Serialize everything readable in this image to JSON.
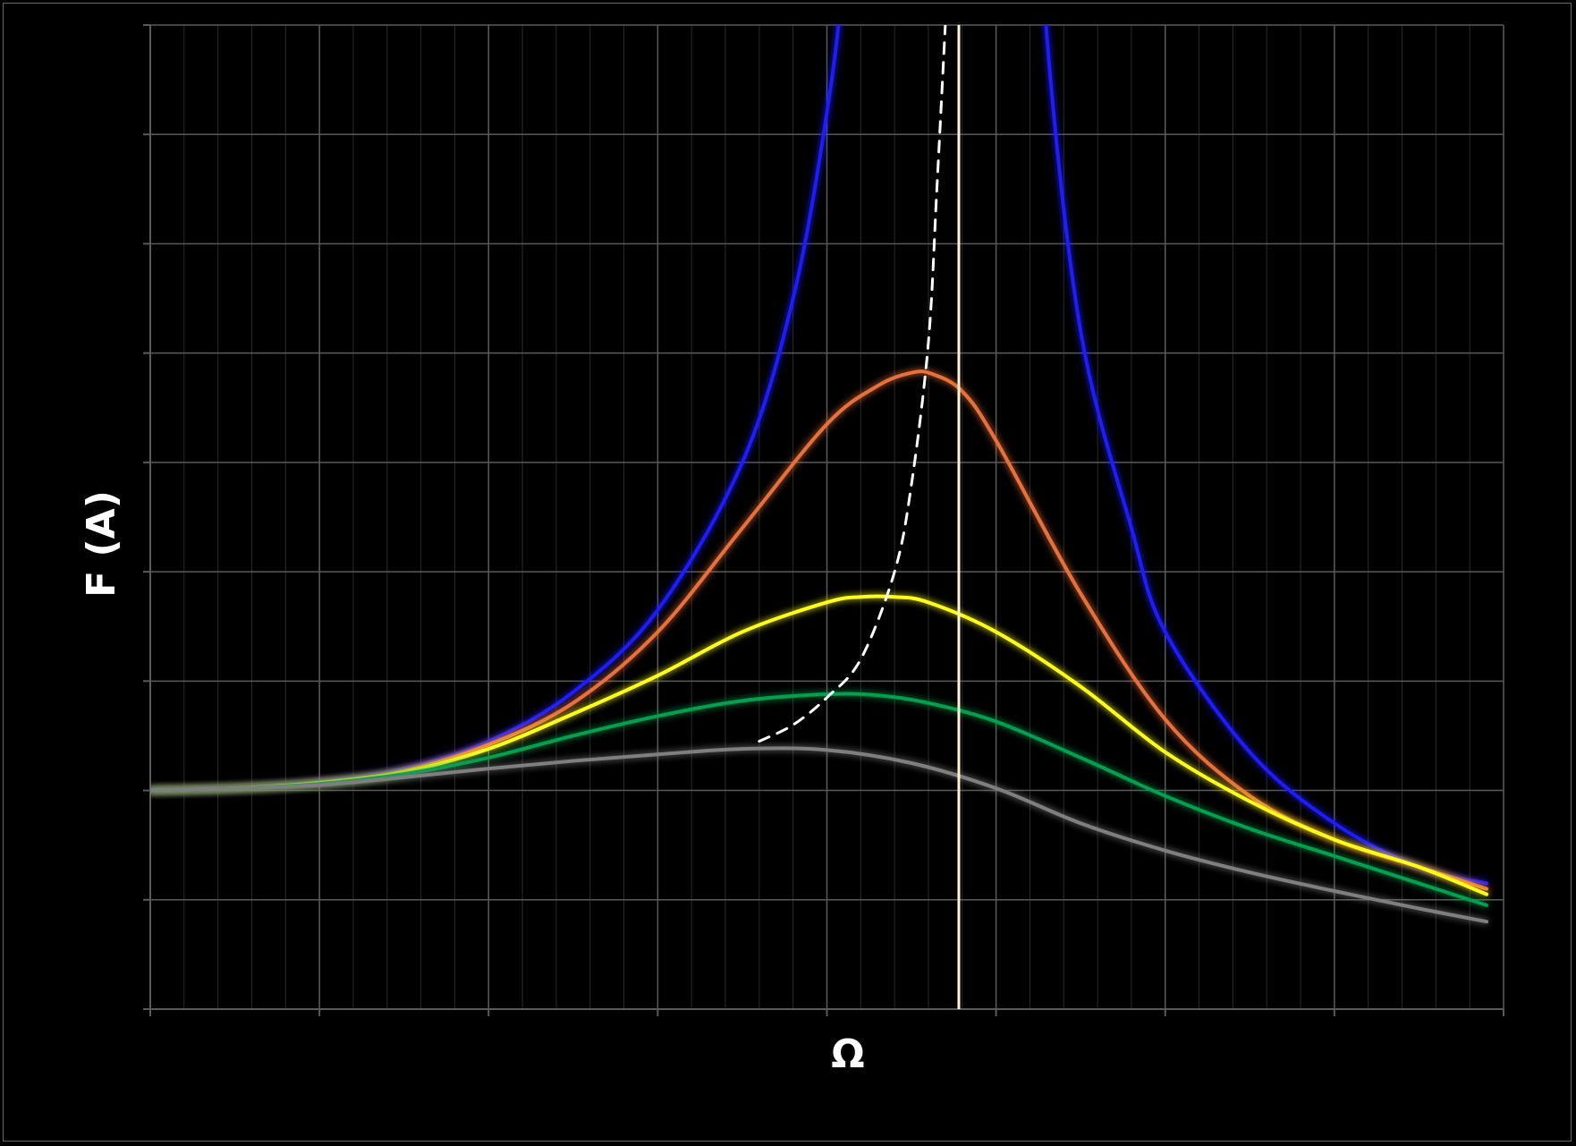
{
  "chart_data": {
    "type": "line",
    "title": "",
    "xlabel": "Ω",
    "ylabel": "F (A)",
    "xlim": [
      0,
      8
    ],
    "ylim": [
      -2,
      7
    ],
    "grid": true,
    "legend": "none",
    "colors": {
      "background": "#000000",
      "grid_major": "#5a5a5a",
      "grid_minor": "#2a2a2a",
      "frame": "#6a6a6a"
    },
    "series": [
      {
        "color": "#1a1aff",
        "style": "solid",
        "segments": [
          {
            "x": [
              0,
              0.5,
              1.0,
              1.5,
              2.0,
              2.5,
              3.0,
              3.5,
              3.8,
              4.0,
              4.1,
              4.2
            ],
            "y": [
              0,
              0.02,
              0.08,
              0.2,
              0.45,
              0.9,
              1.65,
              3.0,
              4.5,
              6.2,
              7.5,
              9.5
            ]
          },
          {
            "x": [
              5.25,
              5.3,
              5.5,
              5.8,
              6.0,
              6.5,
              7.0,
              7.5,
              7.9
            ],
            "y": [
              9.0,
              6.9,
              4.2,
              2.4,
              1.45,
              0.35,
              -0.3,
              -0.7,
              -0.85
            ]
          }
        ]
      },
      {
        "color": "#e8703a",
        "style": "solid",
        "segments": [
          {
            "x": [
              0,
              0.5,
              1.0,
              1.5,
              2.0,
              2.5,
              3.0,
              3.5,
              4.0,
              4.3,
              4.5,
              4.62,
              4.8,
              5.0,
              5.5,
              6.0,
              6.5,
              7.0,
              7.5,
              7.9
            ],
            "y": [
              0,
              0.02,
              0.07,
              0.18,
              0.42,
              0.8,
              1.45,
              2.4,
              3.35,
              3.7,
              3.82,
              3.81,
              3.65,
              3.2,
              1.8,
              0.65,
              -0.05,
              -0.45,
              -0.7,
              -0.9
            ]
          }
        ]
      },
      {
        "color": "#ffff1a",
        "style": "solid",
        "segments": [
          {
            "x": [
              0,
              0.5,
              1.0,
              1.5,
              2.0,
              2.5,
              3.0,
              3.5,
              4.0,
              4.2,
              4.4,
              4.6,
              5.0,
              5.5,
              6.0,
              6.5,
              7.0,
              7.5,
              7.9
            ],
            "y": [
              0,
              0.02,
              0.07,
              0.17,
              0.38,
              0.7,
              1.05,
              1.45,
              1.72,
              1.77,
              1.77,
              1.72,
              1.45,
              0.95,
              0.35,
              -0.1,
              -0.45,
              -0.7,
              -0.95
            ]
          }
        ]
      },
      {
        "color": "#00a050",
        "style": "solid",
        "segments": [
          {
            "x": [
              0,
              0.5,
              1.0,
              1.5,
              2.0,
              2.5,
              3.0,
              3.5,
              4.0,
              4.3,
              4.6,
              5.0,
              5.5,
              6.0,
              6.5,
              7.0,
              7.5,
              7.9
            ],
            "y": [
              0,
              0.02,
              0.06,
              0.15,
              0.3,
              0.5,
              0.68,
              0.82,
              0.88,
              0.87,
              0.8,
              0.63,
              0.3,
              -0.05,
              -0.35,
              -0.6,
              -0.85,
              -1.05
            ]
          }
        ]
      },
      {
        "color": "#7f7f7f",
        "style": "solid",
        "segments": [
          {
            "x": [
              0,
              0.5,
              1.0,
              1.5,
              2.0,
              2.5,
              3.0,
              3.5,
              4.0,
              4.5,
              5.0,
              5.5,
              6.0,
              6.5,
              7.0,
              7.5,
              7.9
            ],
            "y": [
              0,
              0.02,
              0.05,
              0.12,
              0.2,
              0.27,
              0.33,
              0.38,
              0.37,
              0.25,
              0.02,
              -0.3,
              -0.55,
              -0.75,
              -0.92,
              -1.08,
              -1.2
            ]
          }
        ]
      },
      {
        "color": "#ffffff",
        "style": "dashed",
        "segments": [
          {
            "x": [
              3.6,
              3.8,
              4.0,
              4.2,
              4.4,
              4.5,
              4.6,
              4.65,
              4.7
            ],
            "y": [
              0.45,
              0.6,
              0.85,
              1.2,
              2.0,
              2.8,
              4.1,
              5.5,
              7.0
            ]
          }
        ]
      },
      {
        "color": "#fff5d0",
        "style": "vertical",
        "segments": [
          {
            "x": [
              4.78,
              4.78
            ],
            "y": [
              -2,
              7
            ]
          }
        ]
      }
    ]
  }
}
